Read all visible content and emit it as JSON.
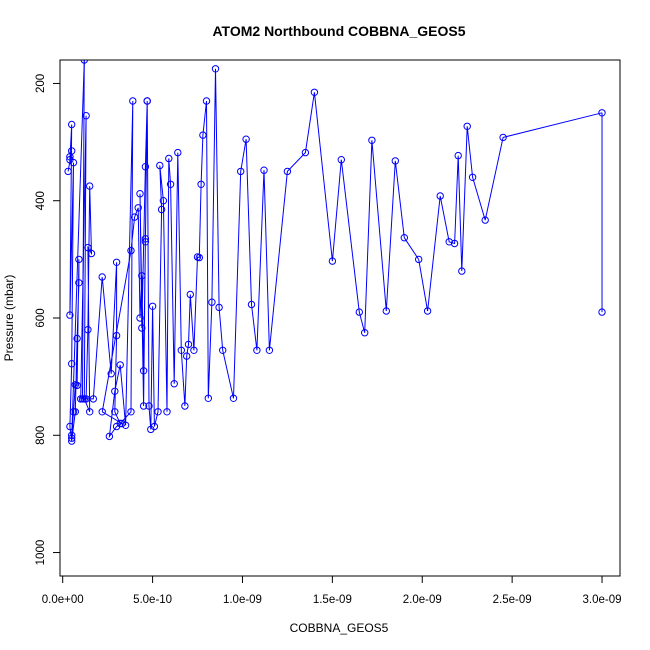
{
  "chart_data": {
    "type": "scatter",
    "title": "ATOM2 Northbound COBBNA_GEOS5",
    "xlabel": "COBBNA_GEOS5",
    "ylabel": "Pressure (mbar)",
    "xlim": [
      -1.5e-11,
      3.1e-09
    ],
    "ylim": [
      1040,
      160
    ],
    "y_reversed": true,
    "x_ticks": [
      0,
      5e-10,
      1e-09,
      1.5e-09,
      2e-09,
      2.5e-09,
      3e-09
    ],
    "x_tick_labels": [
      "0.0e+00",
      "5.0e-10",
      "1.0e-09",
      "1.5e-09",
      "2.0e-09",
      "2.5e-09",
      "3.0e-09"
    ],
    "y_ticks": [
      200,
      400,
      600,
      800,
      1000
    ],
    "y_tick_labels": [
      "200",
      "400",
      "600",
      "800",
      "1000"
    ],
    "series_color": "#0000ff",
    "grid": false,
    "series": [
      {
        "x": [
          3e-11,
          5e-11,
          4e-11,
          4e-11,
          5e-11,
          4e-11,
          6e-11,
          5e-11,
          4e-11,
          5e-11,
          7e-11,
          8e-11,
          9e-11,
          9e-11,
          8e-11,
          7e-11,
          6e-11,
          5e-11,
          5e-11,
          1.2e-10
        ],
        "y": [
          350,
          315,
          325,
          330,
          270,
          595,
          335,
          678,
          785,
          810,
          760,
          635,
          540,
          500,
          715,
          714,
          760,
          800,
          805,
          160
        ]
      },
      {
        "x": [
          1.1e-10,
          1.3e-10,
          1.4e-10,
          1.5e-10,
          1.6e-10,
          1.4e-10,
          1.5e-10,
          1.2e-10,
          1.3e-10,
          1e-10,
          1.7e-10,
          2.2e-10,
          2.7e-10,
          3e-10,
          3e-10,
          2.9e-10,
          3.2e-10,
          3.8e-10,
          3.9e-10,
          3.5e-10,
          3.2e-10,
          2.9e-10,
          2.6e-10,
          3e-10,
          3.3e-10,
          2.2e-10
        ],
        "y": [
          738,
          738,
          620,
          375,
          490,
          480,
          760,
          738,
          255,
          738,
          738,
          530,
          695,
          505,
          630,
          760,
          780,
          760,
          230,
          783,
          680,
          725,
          802,
          785,
          780,
          760
        ]
      },
      {
        "x": [
          3.8e-10,
          4e-10,
          4.2e-10,
          4.3e-10,
          4.4e-10,
          4.5e-10,
          4.6e-10,
          4.7e-10,
          4.6e-10,
          4.4e-10,
          4.3e-10,
          4.5e-10,
          4.6e-10,
          4.7e-10,
          4.8e-10,
          4.9e-10,
          5e-10,
          5.1e-10,
          5.3e-10,
          5.5e-10,
          5.4e-10,
          5.6e-10,
          5.8e-10,
          5.9e-10
        ],
        "y": [
          485,
          428,
          412,
          600,
          528,
          690,
          470,
          230,
          342,
          617,
          388,
          750,
          465,
          230,
          750,
          790,
          580,
          785,
          760,
          415,
          340,
          400,
          760,
          328
        ]
      },
      {
        "x": [
          6e-10,
          6.2e-10,
          6.4e-10,
          6.6e-10,
          6.8e-10,
          6.9e-10,
          7e-10,
          7.1e-10,
          7.3e-10,
          7.5e-10,
          7.6e-10,
          7.7e-10,
          7.8e-10,
          8e-10,
          8.1e-10,
          8.3e-10,
          8.5e-10,
          8.7e-10,
          8.9e-10
        ],
        "y": [
          372,
          712,
          318,
          655,
          750,
          665,
          645,
          560,
          655,
          496,
          497,
          372,
          288,
          230,
          737,
          573,
          175,
          582,
          655
        ]
      },
      {
        "x": [
          9.5e-10,
          9.9e-10,
          1.02e-09,
          1.05e-09,
          1.08e-09,
          1.12e-09,
          1.15e-09,
          1.25e-09,
          1.35e-09,
          1.4e-09,
          1.5e-09,
          1.55e-09,
          1.65e-09,
          1.68e-09,
          1.72e-09,
          1.8e-09,
          1.85e-09,
          1.9e-09
        ],
        "y": [
          737,
          350,
          295,
          577,
          655,
          348,
          655,
          350,
          318,
          215,
          503,
          330,
          590,
          625,
          297,
          588,
          332,
          463
        ]
      },
      {
        "x": [
          1.98e-09,
          2.03e-09,
          2.1e-09,
          2.15e-09,
          2.18e-09,
          2.2e-09,
          2.22e-09,
          2.25e-09,
          2.28e-09,
          2.35e-09,
          2.45e-09,
          3e-09
        ],
        "y": [
          500,
          588,
          392,
          470,
          473,
          323,
          520,
          273,
          360,
          433,
          292,
          250
        ]
      },
      {
        "x": [
          3e-09
        ],
        "y": [
          590
        ]
      }
    ]
  }
}
